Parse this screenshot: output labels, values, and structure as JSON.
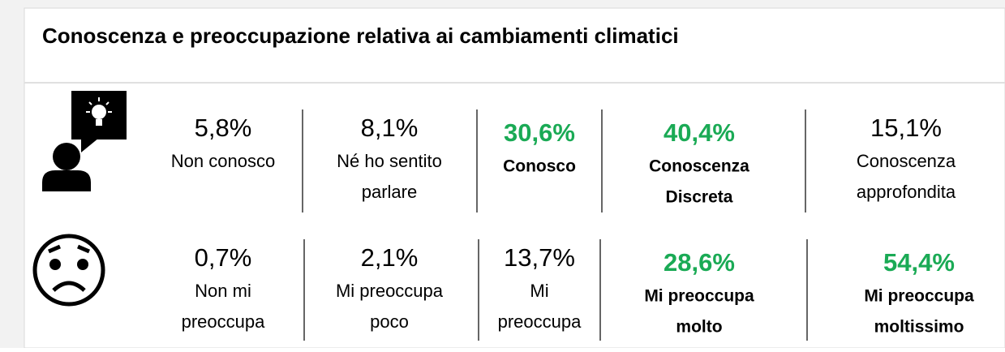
{
  "title": "Conoscenza e preoccupazione relativa ai cambiamenti climatici",
  "rows": [
    {
      "items": [
        {
          "value": "5,8%",
          "label": [
            "Non conosco"
          ],
          "highlight": false
        },
        {
          "value": "8,1%",
          "label": [
            "Né ho sentito",
            "parlare"
          ],
          "highlight": false
        },
        {
          "value": "30,6%",
          "label": [
            "Conosco"
          ],
          "highlight": true
        },
        {
          "value": "40,4%",
          "label": [
            "Conoscenza",
            "Discreta"
          ],
          "highlight": true
        },
        {
          "value": "15,1%",
          "label": [
            "Conoscenza",
            "approfondita"
          ],
          "highlight": false
        }
      ]
    },
    {
      "items": [
        {
          "value": "0,7%",
          "label": [
            "Non mi",
            "preoccupa"
          ],
          "highlight": false
        },
        {
          "value": "2,1%",
          "label": [
            "Mi preoccupa",
            "poco"
          ],
          "highlight": false
        },
        {
          "value": "13,7%",
          "label": [
            "Mi",
            "preoccupa"
          ],
          "highlight": false
        },
        {
          "value": "28,6%",
          "label": [
            "Mi preoccupa",
            "molto"
          ],
          "highlight": true
        },
        {
          "value": "54,4%",
          "label": [
            "Mi preoccupa",
            "moltissimo"
          ],
          "highlight": true
        }
      ]
    }
  ],
  "highlight_color": "#1aaa55"
}
